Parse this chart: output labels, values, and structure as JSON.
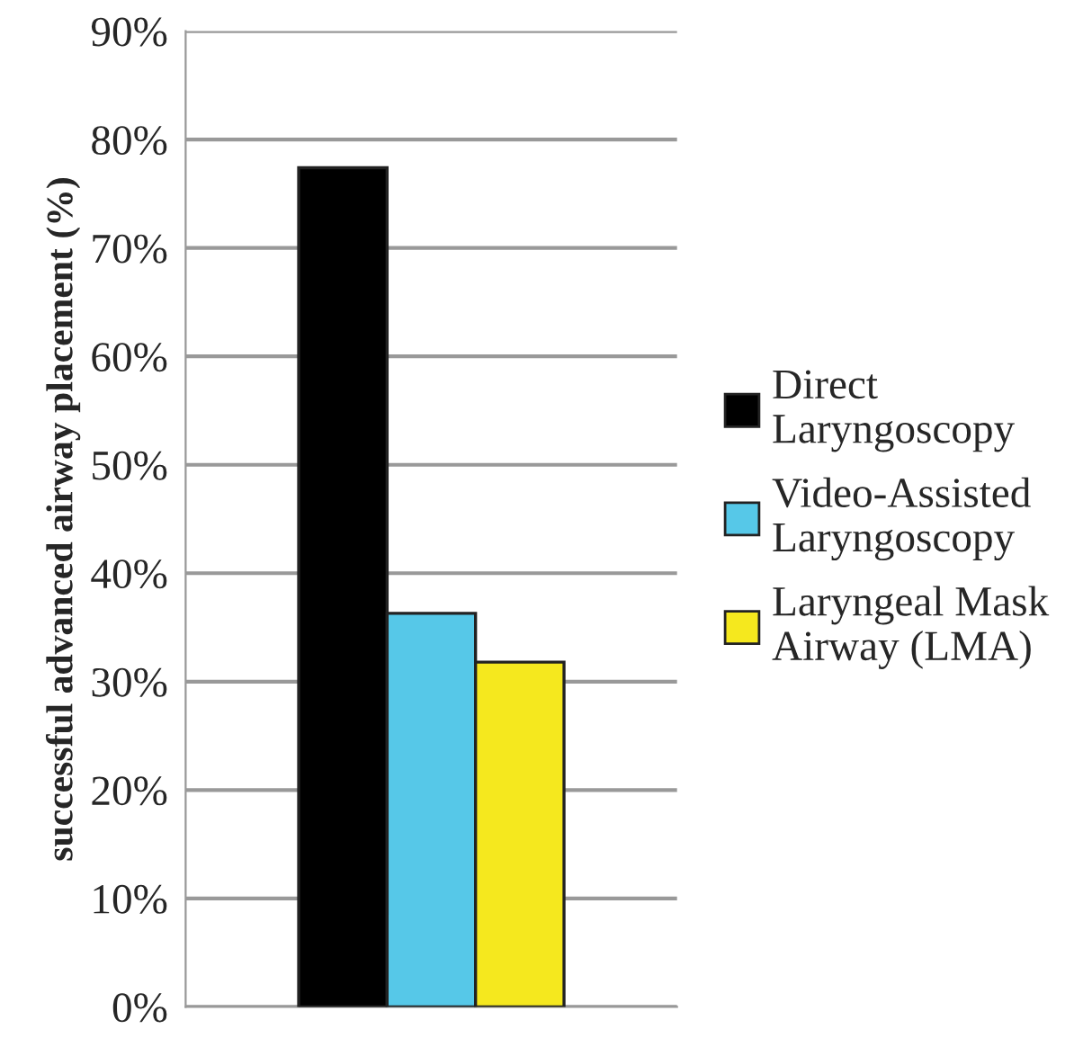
{
  "chart_data": {
    "type": "bar",
    "ylabel": "successful advanced airway placement (%)",
    "categories": [
      null
    ],
    "series": [
      {
        "name": "Direct Laryngoscopy",
        "color": "#000000",
        "values": [
          77.4
        ]
      },
      {
        "name": "Video-Assisted Laryngoscopy",
        "color": "#56c8e8",
        "values": [
          36.3
        ]
      },
      {
        "name": "Laryngeal Mask Airway (LMA)",
        "color": "#f5e81e",
        "values": [
          31.8
        ]
      }
    ],
    "ylim": [
      0,
      90
    ],
    "yticks": [
      {
        "value": 0,
        "label": "0%"
      },
      {
        "value": 10,
        "label": "10%"
      },
      {
        "value": 20,
        "label": "20%"
      },
      {
        "value": 30,
        "label": "30%"
      },
      {
        "value": 40,
        "label": "40%"
      },
      {
        "value": 50,
        "label": "50%"
      },
      {
        "value": 60,
        "label": "60%"
      },
      {
        "value": 70,
        "label": "70%"
      },
      {
        "value": 80,
        "label": "80%"
      },
      {
        "value": 90,
        "label": "90%"
      }
    ],
    "grid": "y",
    "legend": "right"
  }
}
